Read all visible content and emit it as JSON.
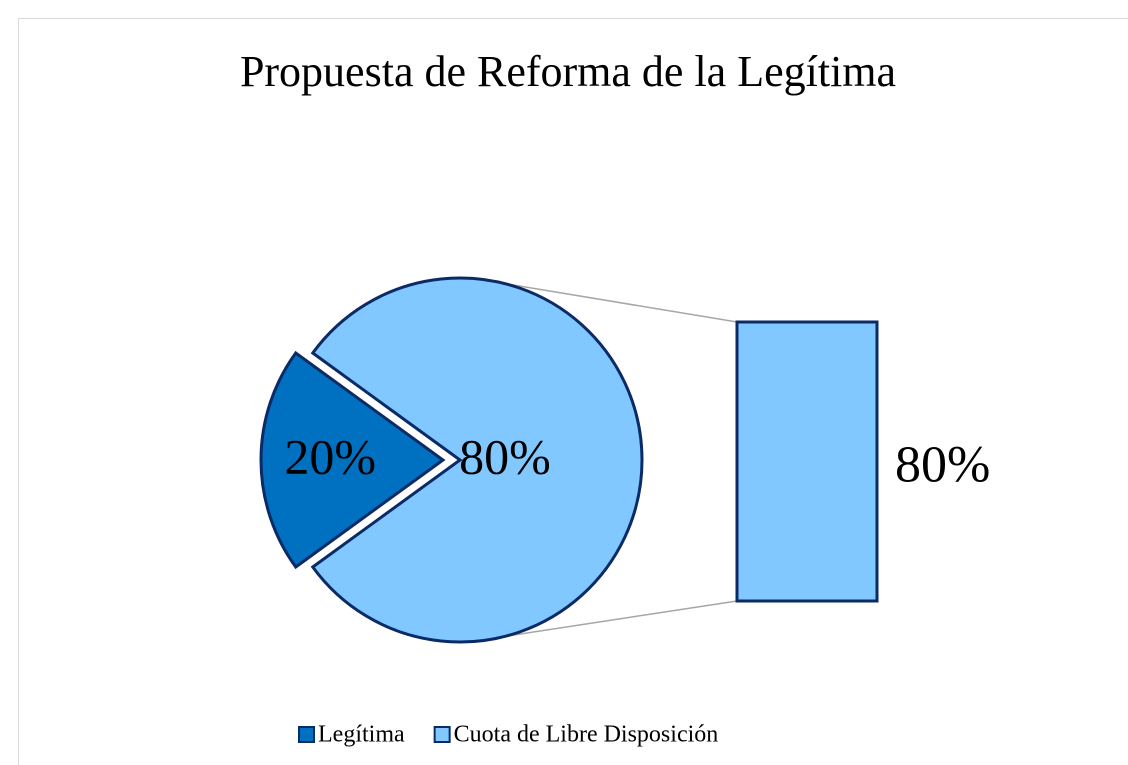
{
  "chart_data": {
    "type": "pie",
    "title": "Propuesta de Reforma de la Legítima",
    "categories": [
      "Legítima",
      "Cuota de Libre Disposición"
    ],
    "values": [
      20,
      80
    ],
    "value_labels": [
      "20%",
      "80%"
    ],
    "colors": [
      "#0070c0",
      "#80c8ff"
    ],
    "legend": "bottom"
  }
}
